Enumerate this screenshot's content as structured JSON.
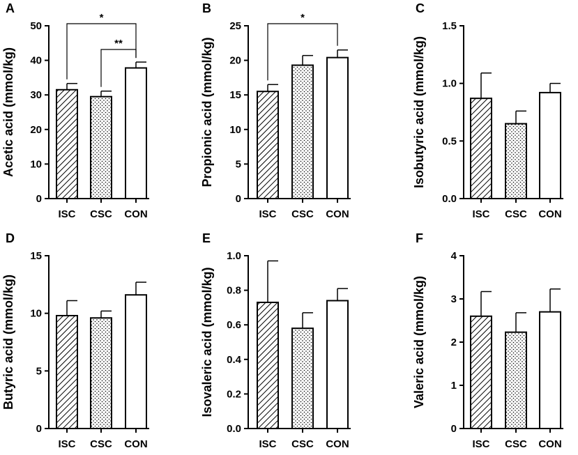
{
  "colors": {
    "ink": "#000000",
    "background": "#ffffff"
  },
  "fills": {
    "ISC": "diagonal-hatch",
    "CSC": "dotted",
    "CON": "blank"
  },
  "chart_data": [
    {
      "panel": "A",
      "type": "bar",
      "ylabel": "Acetic acid (mmol/kg)",
      "categories": [
        "ISC",
        "CSC",
        "CON"
      ],
      "values": [
        31.5,
        29.5,
        37.8
      ],
      "errors": [
        1.8,
        1.6,
        1.7
      ],
      "ylim": [
        0,
        50
      ],
      "yticks": [
        0,
        10,
        20,
        30,
        40,
        50
      ],
      "ytick_labels": [
        "0",
        "10",
        "20",
        "30",
        "40",
        "50"
      ],
      "brackets": [
        {
          "from": "ISC",
          "to": "CON",
          "label": "*",
          "level": 1
        },
        {
          "from": "CSC",
          "to": "CON",
          "label": "**",
          "level": 0
        }
      ]
    },
    {
      "panel": "B",
      "type": "bar",
      "ylabel": "Propionic acid (mmol/kg)",
      "categories": [
        "ISC",
        "CSC",
        "CON"
      ],
      "values": [
        15.5,
        19.3,
        20.4
      ],
      "errors": [
        1.0,
        1.4,
        1.1
      ],
      "ylim": [
        0,
        25
      ],
      "yticks": [
        0,
        5,
        10,
        15,
        20,
        25
      ],
      "ytick_labels": [
        "0",
        "5",
        "10",
        "15",
        "20",
        "25"
      ],
      "brackets": [
        {
          "from": "ISC",
          "to": "CON",
          "label": "*",
          "level": 0
        }
      ]
    },
    {
      "panel": "C",
      "type": "bar",
      "ylabel": "Isobutyric acid (mmol/kg)",
      "categories": [
        "ISC",
        "CSC",
        "CON"
      ],
      "values": [
        0.87,
        0.65,
        0.92
      ],
      "errors": [
        0.22,
        0.11,
        0.08
      ],
      "ylim": [
        0,
        1.5
      ],
      "yticks": [
        0,
        0.5,
        1.0,
        1.5
      ],
      "ytick_labels": [
        "0.0",
        "0.5",
        "1.0",
        "1.5"
      ],
      "brackets": []
    },
    {
      "panel": "D",
      "type": "bar",
      "ylabel": "Butyric acid (mmol/kg)",
      "categories": [
        "ISC",
        "CSC",
        "CON"
      ],
      "values": [
        9.8,
        9.6,
        11.6
      ],
      "errors": [
        1.3,
        0.6,
        1.1
      ],
      "ylim": [
        0,
        15
      ],
      "yticks": [
        0,
        5,
        10,
        15
      ],
      "ytick_labels": [
        "0",
        "5",
        "10",
        "15"
      ],
      "brackets": []
    },
    {
      "panel": "E",
      "type": "bar",
      "ylabel": "Isovaleric acid (mmol/kg)",
      "categories": [
        "ISC",
        "CSC",
        "CON"
      ],
      "values": [
        0.73,
        0.58,
        0.74
      ],
      "errors": [
        0.24,
        0.09,
        0.07
      ],
      "ylim": [
        0,
        1.0
      ],
      "yticks": [
        0,
        0.2,
        0.4,
        0.6,
        0.8,
        1.0
      ],
      "ytick_labels": [
        "0.0",
        "0.2",
        "0.4",
        "0.6",
        "0.8",
        "1.0"
      ],
      "brackets": []
    },
    {
      "panel": "F",
      "type": "bar",
      "ylabel": "Valeric acid (mmol/kg)",
      "categories": [
        "ISC",
        "CSC",
        "CON"
      ],
      "values": [
        2.6,
        2.23,
        2.7
      ],
      "errors": [
        0.57,
        0.45,
        0.53
      ],
      "ylim": [
        0,
        4
      ],
      "yticks": [
        0,
        1,
        2,
        3,
        4
      ],
      "ytick_labels": [
        "0",
        "1",
        "2",
        "3",
        "4"
      ],
      "brackets": []
    }
  ]
}
